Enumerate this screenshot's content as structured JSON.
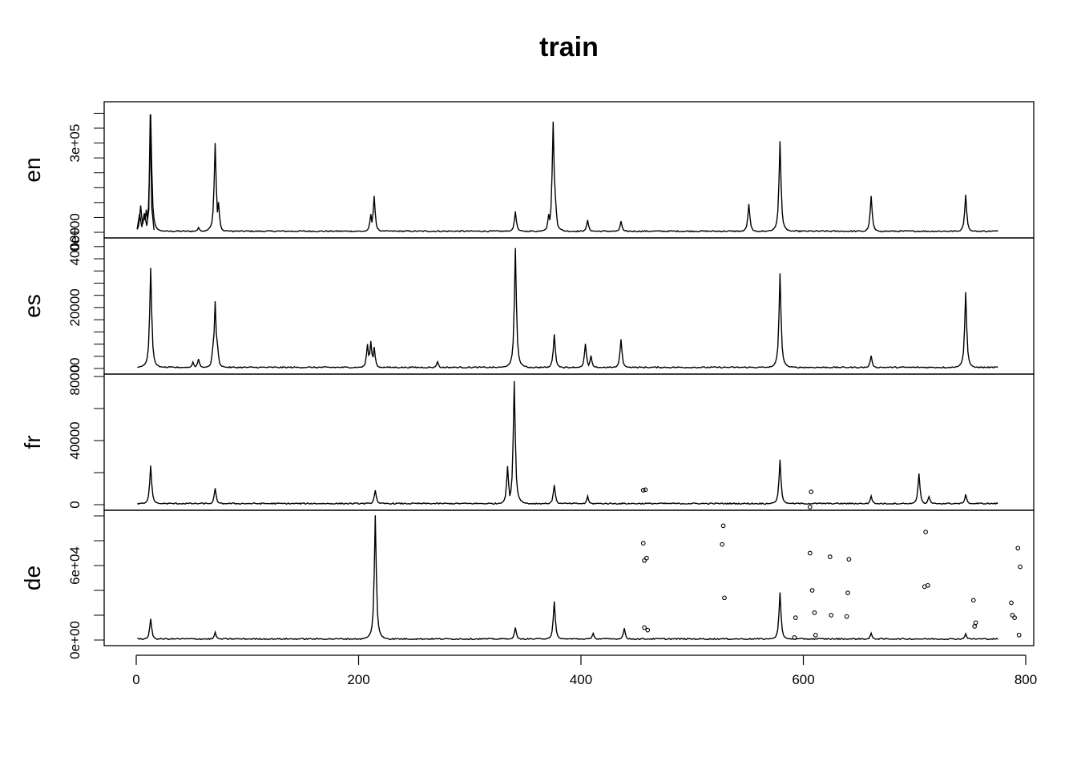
{
  "chart_data": {
    "type": "line",
    "title": "train",
    "xlabel": "",
    "xlim": [
      0,
      800
    ],
    "x_ticks": [
      0,
      200,
      400,
      600,
      800
    ],
    "x_tick_labels": [
      "0",
      "200",
      "400",
      "600",
      "800"
    ],
    "grid": false,
    "legend": "none",
    "panels": [
      {
        "name": "en",
        "ylim": [
          0,
          420000
        ],
        "y_ticks": [
          0,
          300000
        ],
        "y_tick_labels": [
          "0e+00",
          "3e+05"
        ],
        "minor_ticks": [
          0,
          50000,
          100000,
          150000,
          200000,
          250000,
          300000,
          350000,
          400000
        ],
        "peaks": [
          [
            3,
            90000
          ],
          [
            6,
            55000
          ],
          [
            8,
            75000
          ],
          [
            10,
            60000
          ],
          [
            12,
            395000
          ],
          [
            13,
            90000
          ],
          [
            55,
            15000
          ],
          [
            70,
            300000
          ],
          [
            73,
            100000
          ],
          [
            210,
            60000
          ],
          [
            213,
            120000
          ],
          [
            340,
            70000
          ],
          [
            370,
            60000
          ],
          [
            374,
            370000
          ],
          [
            376,
            120000
          ],
          [
            405,
            40000
          ],
          [
            435,
            35000
          ],
          [
            550,
            95000
          ],
          [
            578,
            305000
          ],
          [
            660,
            122000
          ],
          [
            745,
            125000
          ]
        ],
        "spikes": [
          {
            "x": [
              0.8,
              3.0,
              5.0,
              7.3,
              9.5,
              11.3,
              12.6,
              14.0,
              16.0
            ],
            "y": [
              10000,
              62000,
              18000,
              64000,
              22000,
              76000,
              397000,
              82000,
              8000
            ]
          }
        ]
      },
      {
        "name": "es",
        "ylim": [
          0,
          41000
        ],
        "y_ticks": [
          0,
          20000,
          40000
        ],
        "y_tick_labels": [
          "0",
          "20000",
          "40000"
        ],
        "minor_ticks": [
          0,
          4000,
          8000,
          12000,
          16000,
          20000,
          24000,
          28000,
          32000,
          36000,
          40000
        ],
        "peaks": [
          [
            12,
            33000
          ],
          [
            50,
            2000
          ],
          [
            55,
            3000
          ],
          [
            68,
            7500
          ],
          [
            70,
            22000
          ],
          [
            72,
            8000
          ],
          [
            207,
            8000
          ],
          [
            210,
            9000
          ],
          [
            213,
            7000
          ],
          [
            270,
            2000
          ],
          [
            340,
            39500
          ],
          [
            375,
            11000
          ],
          [
            403,
            8000
          ],
          [
            408,
            4000
          ],
          [
            435,
            9500
          ],
          [
            578,
            31000
          ],
          [
            660,
            4000
          ],
          [
            745,
            25000
          ]
        ],
        "spikes": []
      },
      {
        "name": "fr",
        "ylim": [
          0,
          78000
        ],
        "y_ticks": [
          0,
          40000,
          80000
        ],
        "y_tick_labels": [
          "0",
          "40000",
          "80000"
        ],
        "minor_ticks": [
          0,
          20000,
          40000,
          60000,
          80000
        ],
        "peaks": [
          [
            12,
            24000
          ],
          [
            70,
            10000
          ],
          [
            214,
            9000
          ],
          [
            333,
            24000
          ],
          [
            339,
            77000
          ],
          [
            375,
            12000
          ],
          [
            405,
            5000
          ],
          [
            578,
            28000
          ],
          [
            660,
            5000
          ],
          [
            703,
            19000
          ],
          [
            712,
            5000
          ],
          [
            745,
            6000
          ]
        ],
        "spikes": [],
        "points": [
          [
            456,
            9000
          ],
          [
            458,
            9300
          ],
          [
            607,
            8000
          ],
          [
            606,
            -1500
          ]
        ]
      },
      {
        "name": "de",
        "ylim": [
          0,
          100000
        ],
        "y_ticks": [
          0,
          60000
        ],
        "y_tick_labels": [
          "0e+00",
          "6e+04"
        ],
        "minor_ticks": [
          0,
          20000,
          40000,
          60000,
          80000,
          100000
        ],
        "peaks": [
          [
            12,
            17000
          ],
          [
            70,
            6000
          ],
          [
            214,
            100000
          ],
          [
            340,
            10000
          ],
          [
            375,
            31000
          ],
          [
            410,
            5000
          ],
          [
            438,
            9000
          ],
          [
            578,
            38000
          ],
          [
            660,
            5000
          ],
          [
            745,
            5000
          ]
        ],
        "spikes": [],
        "points": [
          [
            456,
            78000
          ],
          [
            457,
            64000
          ],
          [
            459,
            66000
          ],
          [
            457,
            10000
          ],
          [
            460,
            8000
          ],
          [
            528,
            92000
          ],
          [
            527,
            77000
          ],
          [
            529,
            34000
          ],
          [
            592,
            2000
          ],
          [
            593,
            18000
          ],
          [
            606,
            70000
          ],
          [
            608,
            40000
          ],
          [
            610,
            22000
          ],
          [
            611,
            4000
          ],
          [
            624,
            67000
          ],
          [
            625,
            20000
          ],
          [
            639,
            19000
          ],
          [
            640,
            38000
          ],
          [
            641,
            65000
          ],
          [
            710,
            87000
          ],
          [
            709,
            43000
          ],
          [
            712,
            44000
          ],
          [
            753,
            32000
          ],
          [
            754,
            11000
          ],
          [
            755,
            14000
          ],
          [
            787,
            30000
          ],
          [
            788,
            20000
          ],
          [
            790,
            18000
          ],
          [
            793,
            74000
          ],
          [
            794,
            4000
          ],
          [
            795,
            59000
          ]
        ]
      }
    ]
  }
}
